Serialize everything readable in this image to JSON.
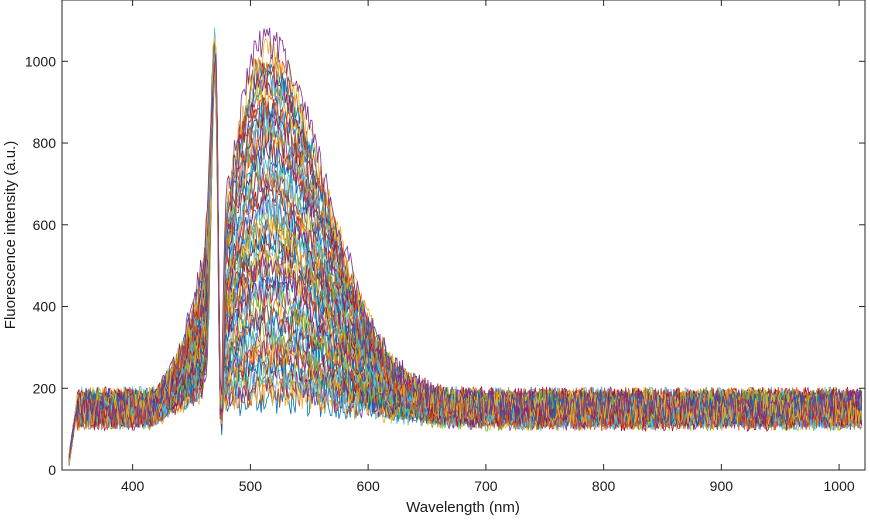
{
  "chart_data": {
    "type": "line",
    "title": "",
    "xlabel": "Wavelength (nm)",
    "ylabel": "Fluorescence intensity (a.u.)",
    "xlim": [
      340,
      1022
    ],
    "ylim": [
      0,
      1150
    ],
    "xticks": [
      400,
      500,
      600,
      700,
      800,
      900,
      1000
    ],
    "yticks": [
      0,
      200,
      400,
      600,
      800,
      1000
    ],
    "grid": false,
    "legend": "none",
    "num_spectra": 60,
    "features": {
      "excitation_peak_nm": 470,
      "excitation_peak_intensity": 1070,
      "emission_peak_nm": 512,
      "emission_peak_max_intensity": 1040,
      "emission_peak_min_intensity": 170,
      "shoulder_onset_nm": 420,
      "shoulder_level_max": 330,
      "baseline_intensity": 150,
      "baseline_noise": 40,
      "dip_nm": 475,
      "dip_intensity": 80
    },
    "series_colors": [
      "#0072BD",
      "#D95319",
      "#EDB120",
      "#7E2F8E",
      "#77AC30",
      "#4DBEEE",
      "#A2142F"
    ]
  }
}
